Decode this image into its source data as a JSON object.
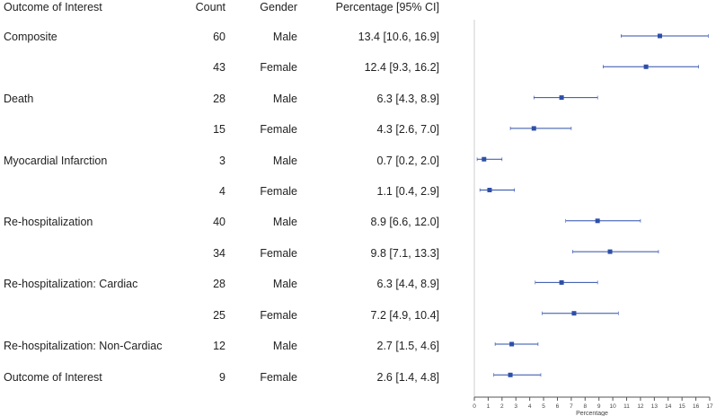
{
  "chart_data": {
    "type": "forest",
    "columns": {
      "outcome": "Outcome of Interest",
      "count": "Count",
      "gender": "Gender",
      "percentage": "Percentage [95% CI]"
    },
    "rows": [
      {
        "outcome": "Composite",
        "count": "60",
        "gender": "Male",
        "pct_text": "13.4 [10.6, 16.9]",
        "est": 13.4,
        "lo": 10.6,
        "hi": 16.9
      },
      {
        "outcome": "",
        "count": "43",
        "gender": "Female",
        "pct_text": "12.4 [9.3, 16.2]",
        "est": 12.4,
        "lo": 9.3,
        "hi": 16.2
      },
      {
        "outcome": "Death",
        "count": "28",
        "gender": "Male",
        "pct_text": "6.3 [4.3, 8.9]",
        "est": 6.3,
        "lo": 4.3,
        "hi": 8.9
      },
      {
        "outcome": "",
        "count": "15",
        "gender": "Female",
        "pct_text": "4.3 [2.6, 7.0]",
        "est": 4.3,
        "lo": 2.6,
        "hi": 7.0
      },
      {
        "outcome": "Myocardial Infarction",
        "count": "3",
        "gender": "Male",
        "pct_text": "0.7 [0.2, 2.0]",
        "est": 0.7,
        "lo": 0.2,
        "hi": 2.0
      },
      {
        "outcome": "",
        "count": "4",
        "gender": "Female",
        "pct_text": "1.1 [0.4, 2.9]",
        "est": 1.1,
        "lo": 0.4,
        "hi": 2.9
      },
      {
        "outcome": "Re-hospitalization",
        "count": "40",
        "gender": "Male",
        "pct_text": "8.9 [6.6, 12.0]",
        "est": 8.9,
        "lo": 6.6,
        "hi": 12.0
      },
      {
        "outcome": "",
        "count": "34",
        "gender": "Female",
        "pct_text": "9.8 [7.1, 13.3]",
        "est": 9.8,
        "lo": 7.1,
        "hi": 13.3
      },
      {
        "outcome": "Re-hospitalization: Cardiac",
        "count": "28",
        "gender": "Male",
        "pct_text": "6.3 [4.4, 8.9]",
        "est": 6.3,
        "lo": 4.4,
        "hi": 8.9
      },
      {
        "outcome": "",
        "count": "25",
        "gender": "Female",
        "pct_text": "7.2 [4.9, 10.4]",
        "est": 7.2,
        "lo": 4.9,
        "hi": 10.4
      },
      {
        "outcome": "Re-hospitalization: Non-Cardiac",
        "count": "12",
        "gender": "Male",
        "pct_text": "2.7 [1.5, 4.6]",
        "est": 2.7,
        "lo": 1.5,
        "hi": 4.6
      },
      {
        "outcome": "Outcome of Interest",
        "count": "9",
        "gender": "Female",
        "pct_text": "2.6 [1.4, 4.8]",
        "est": 2.6,
        "lo": 1.4,
        "hi": 4.8
      }
    ],
    "xlabel": "Percentage",
    "xlim": [
      0,
      17
    ],
    "xticks": [
      0,
      1,
      2,
      3,
      4,
      5,
      6,
      7,
      8,
      9,
      10,
      11,
      12,
      13,
      14,
      15,
      16,
      17
    ],
    "reference_line": 0,
    "colors": {
      "marker": "#2e4fa8",
      "line": "#2e4fa8",
      "axis": "#555555",
      "ref": "#cccccc"
    }
  }
}
